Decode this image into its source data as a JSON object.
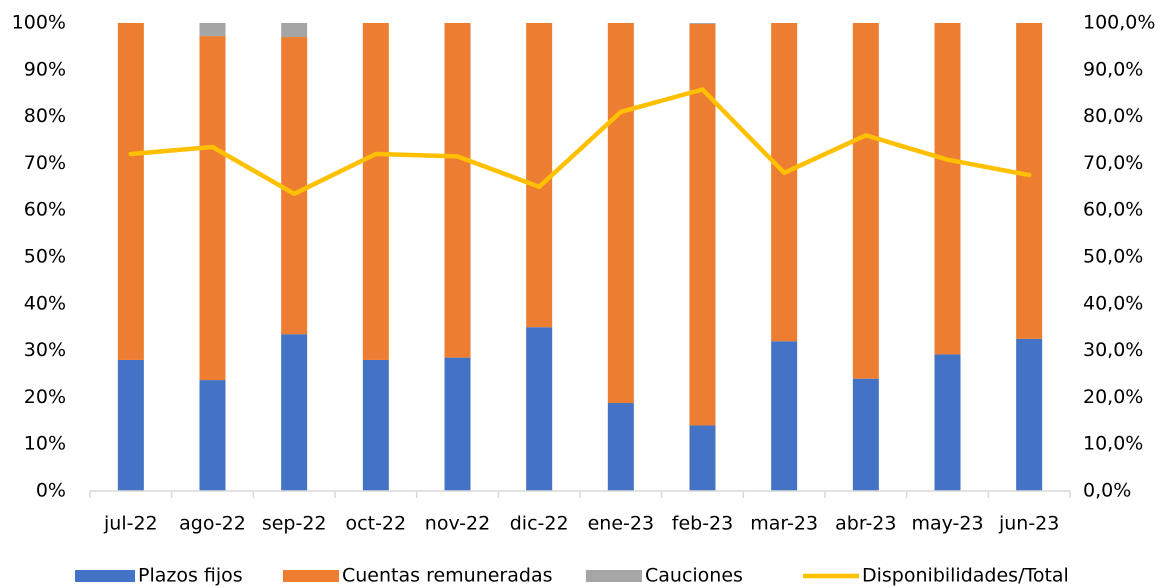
{
  "chart_data": {
    "type": "bar",
    "stacked": true,
    "categories": [
      "jul-22",
      "ago-22",
      "sep-22",
      "oct-22",
      "nov-22",
      "dic-22",
      "ene-23",
      "feb-23",
      "mar-23",
      "abr-23",
      "may-23",
      "jun-23"
    ],
    "series": [
      {
        "name": "Plazos fijos",
        "type": "bar",
        "color": "#4472C4",
        "axis": "left",
        "values": [
          28.0,
          23.7,
          33.5,
          28.0,
          28.5,
          35.0,
          18.8,
          14.0,
          32.0,
          24.0,
          29.2,
          32.5
        ]
      },
      {
        "name": "Cuentas remuneradas",
        "type": "bar",
        "color": "#ED7D31",
        "axis": "left",
        "values": [
          72.0,
          73.5,
          63.5,
          72.0,
          71.5,
          65.0,
          81.2,
          85.8,
          68.0,
          76.0,
          70.8,
          67.5
        ]
      },
      {
        "name": "Cauciones",
        "type": "bar",
        "color": "#A5A5A5",
        "axis": "left",
        "values": [
          0.0,
          2.8,
          3.0,
          0.0,
          0.0,
          0.0,
          0.0,
          0.2,
          0.0,
          0.0,
          0.0,
          0.0
        ]
      },
      {
        "name": "Disponibilidades/Total",
        "type": "line",
        "color": "#FFC000",
        "axis": "right",
        "values": [
          72.0,
          73.5,
          63.5,
          72.0,
          71.5,
          65.0,
          81.0,
          85.8,
          68.0,
          76.0,
          70.8,
          67.5
        ]
      }
    ],
    "y_left": {
      "min": 0,
      "max": 100,
      "ticks": [
        "0%",
        "10%",
        "20%",
        "30%",
        "40%",
        "50%",
        "60%",
        "70%",
        "80%",
        "90%",
        "100%"
      ]
    },
    "y_right": {
      "min": 0,
      "max": 100,
      "ticks": [
        "0,0%",
        "10,0%",
        "20,0%",
        "30,0%",
        "40,0%",
        "50,0%",
        "60,0%",
        "70,0%",
        "80,0%",
        "90,0%",
        "100,0%"
      ]
    },
    "grid": false,
    "legend": "bottom"
  }
}
